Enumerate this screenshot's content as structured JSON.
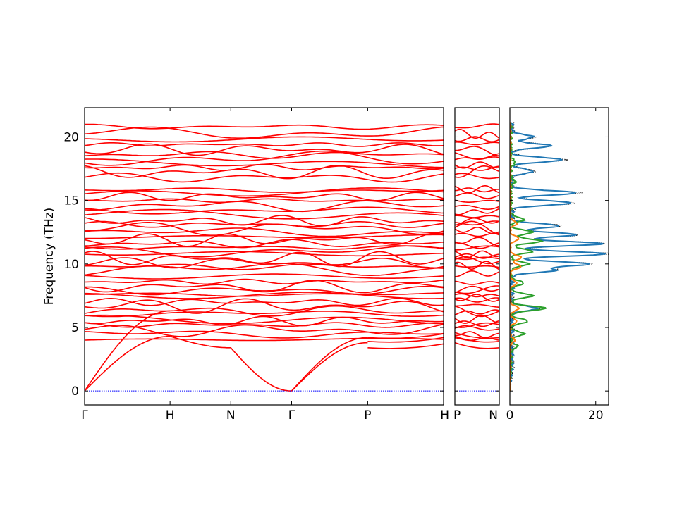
{
  "chart_data": [
    {
      "type": "line",
      "panel": "band-structure",
      "ylabel": "Frequency (THz)",
      "ylim": [
        -1.1,
        22.3
      ],
      "yticks": [
        0,
        5,
        10,
        15,
        20
      ],
      "x_labels": [
        "Γ",
        "H",
        "N",
        "Γ",
        "P",
        "H"
      ],
      "segments": [
        "Γ-H",
        "H-N",
        "N-Γ",
        "Γ-P",
        "P-H"
      ],
      "band_color": "#ff0000",
      "zero_line_color": "#0000ff",
      "acoustic_branches": [
        {
          "path": "Γ-H",
          "values": [
            [
              0,
              0
            ],
            [
              1,
              4.3
            ]
          ]
        },
        {
          "path": "Γ-H",
          "values": [
            [
              0,
              0
            ],
            [
              1,
              6.3
            ]
          ]
        },
        {
          "path": "H-N",
          "values": [
            [
              0,
              4.3
            ],
            [
              1,
              3.4
            ]
          ]
        },
        {
          "path": "N-Γ",
          "values": [
            [
              0,
              3.4
            ],
            [
              1,
              0
            ]
          ]
        },
        {
          "path": "Γ-P",
          "values": [
            [
              0,
              0
            ],
            [
              1,
              3.8
            ]
          ]
        },
        {
          "path": "Γ-P",
          "values": [
            [
              0,
              0
            ],
            [
              1,
              4.2
            ]
          ]
        }
      ],
      "optical_band_levels_thz": [
        4.0,
        4.5,
        4.8,
        5.2,
        5.5,
        5.8,
        6.1,
        6.3,
        6.7,
        7.0,
        7.3,
        7.6,
        7.9,
        8.2,
        8.6,
        9.2,
        9.6,
        9.8,
        10.1,
        10.4,
        10.7,
        11.0,
        11.3,
        11.6,
        11.9,
        12.2,
        12.5,
        12.8,
        13.1,
        13.4,
        13.8,
        14.2,
        14.6,
        15.0,
        15.3,
        15.6,
        15.8,
        16.8,
        17.2,
        17.6,
        18.0,
        18.3,
        18.6,
        19.0,
        19.4,
        19.7,
        20.3,
        20.8
      ]
    },
    {
      "type": "line",
      "panel": "band-structure-segment",
      "x_labels": [
        "P",
        "N"
      ],
      "segments": [
        "P-N"
      ],
      "band_color": "#ff0000",
      "zero_line_color": "#0000ff"
    },
    {
      "type": "line",
      "panel": "density-of-states",
      "xlim": [
        0,
        23
      ],
      "xticks": [
        0,
        20
      ],
      "series": [
        {
          "color": "#1f77b4",
          "key": "blue"
        },
        {
          "color": "#ff7f0e",
          "key": "orange"
        },
        {
          "color": "#2ca02c",
          "key": "green"
        },
        {
          "color": "#000000",
          "key": "total",
          "style": "dotted"
        }
      ],
      "peaks_blue": [
        [
          20.0,
          5
        ],
        [
          19.3,
          9
        ],
        [
          18.2,
          12
        ],
        [
          17.3,
          5
        ],
        [
          15.6,
          15
        ],
        [
          14.8,
          14
        ],
        [
          13.0,
          11
        ],
        [
          12.3,
          15
        ],
        [
          11.6,
          21
        ],
        [
          10.8,
          22
        ],
        [
          10.0,
          18
        ],
        [
          9.5,
          10
        ],
        [
          6.5,
          6
        ]
      ],
      "peaks_orange": [
        [
          13.2,
          1.5
        ],
        [
          12.0,
          2.0
        ],
        [
          10.5,
          2.5
        ],
        [
          9.8,
          2.5
        ],
        [
          8.5,
          1.5
        ],
        [
          6.5,
          2.0
        ],
        [
          5.5,
          1.5
        ],
        [
          4.0,
          1.0
        ]
      ],
      "peaks_green": [
        [
          18.0,
          1
        ],
        [
          16.5,
          1
        ],
        [
          13.5,
          3
        ],
        [
          12.5,
          5
        ],
        [
          11.8,
          7
        ],
        [
          11.0,
          5
        ],
        [
          10.0,
          4
        ],
        [
          8.5,
          3
        ],
        [
          7.5,
          5
        ],
        [
          6.5,
          8
        ],
        [
          5.5,
          4
        ],
        [
          4.5,
          3
        ],
        [
          3.5,
          1.5
        ]
      ]
    }
  ]
}
